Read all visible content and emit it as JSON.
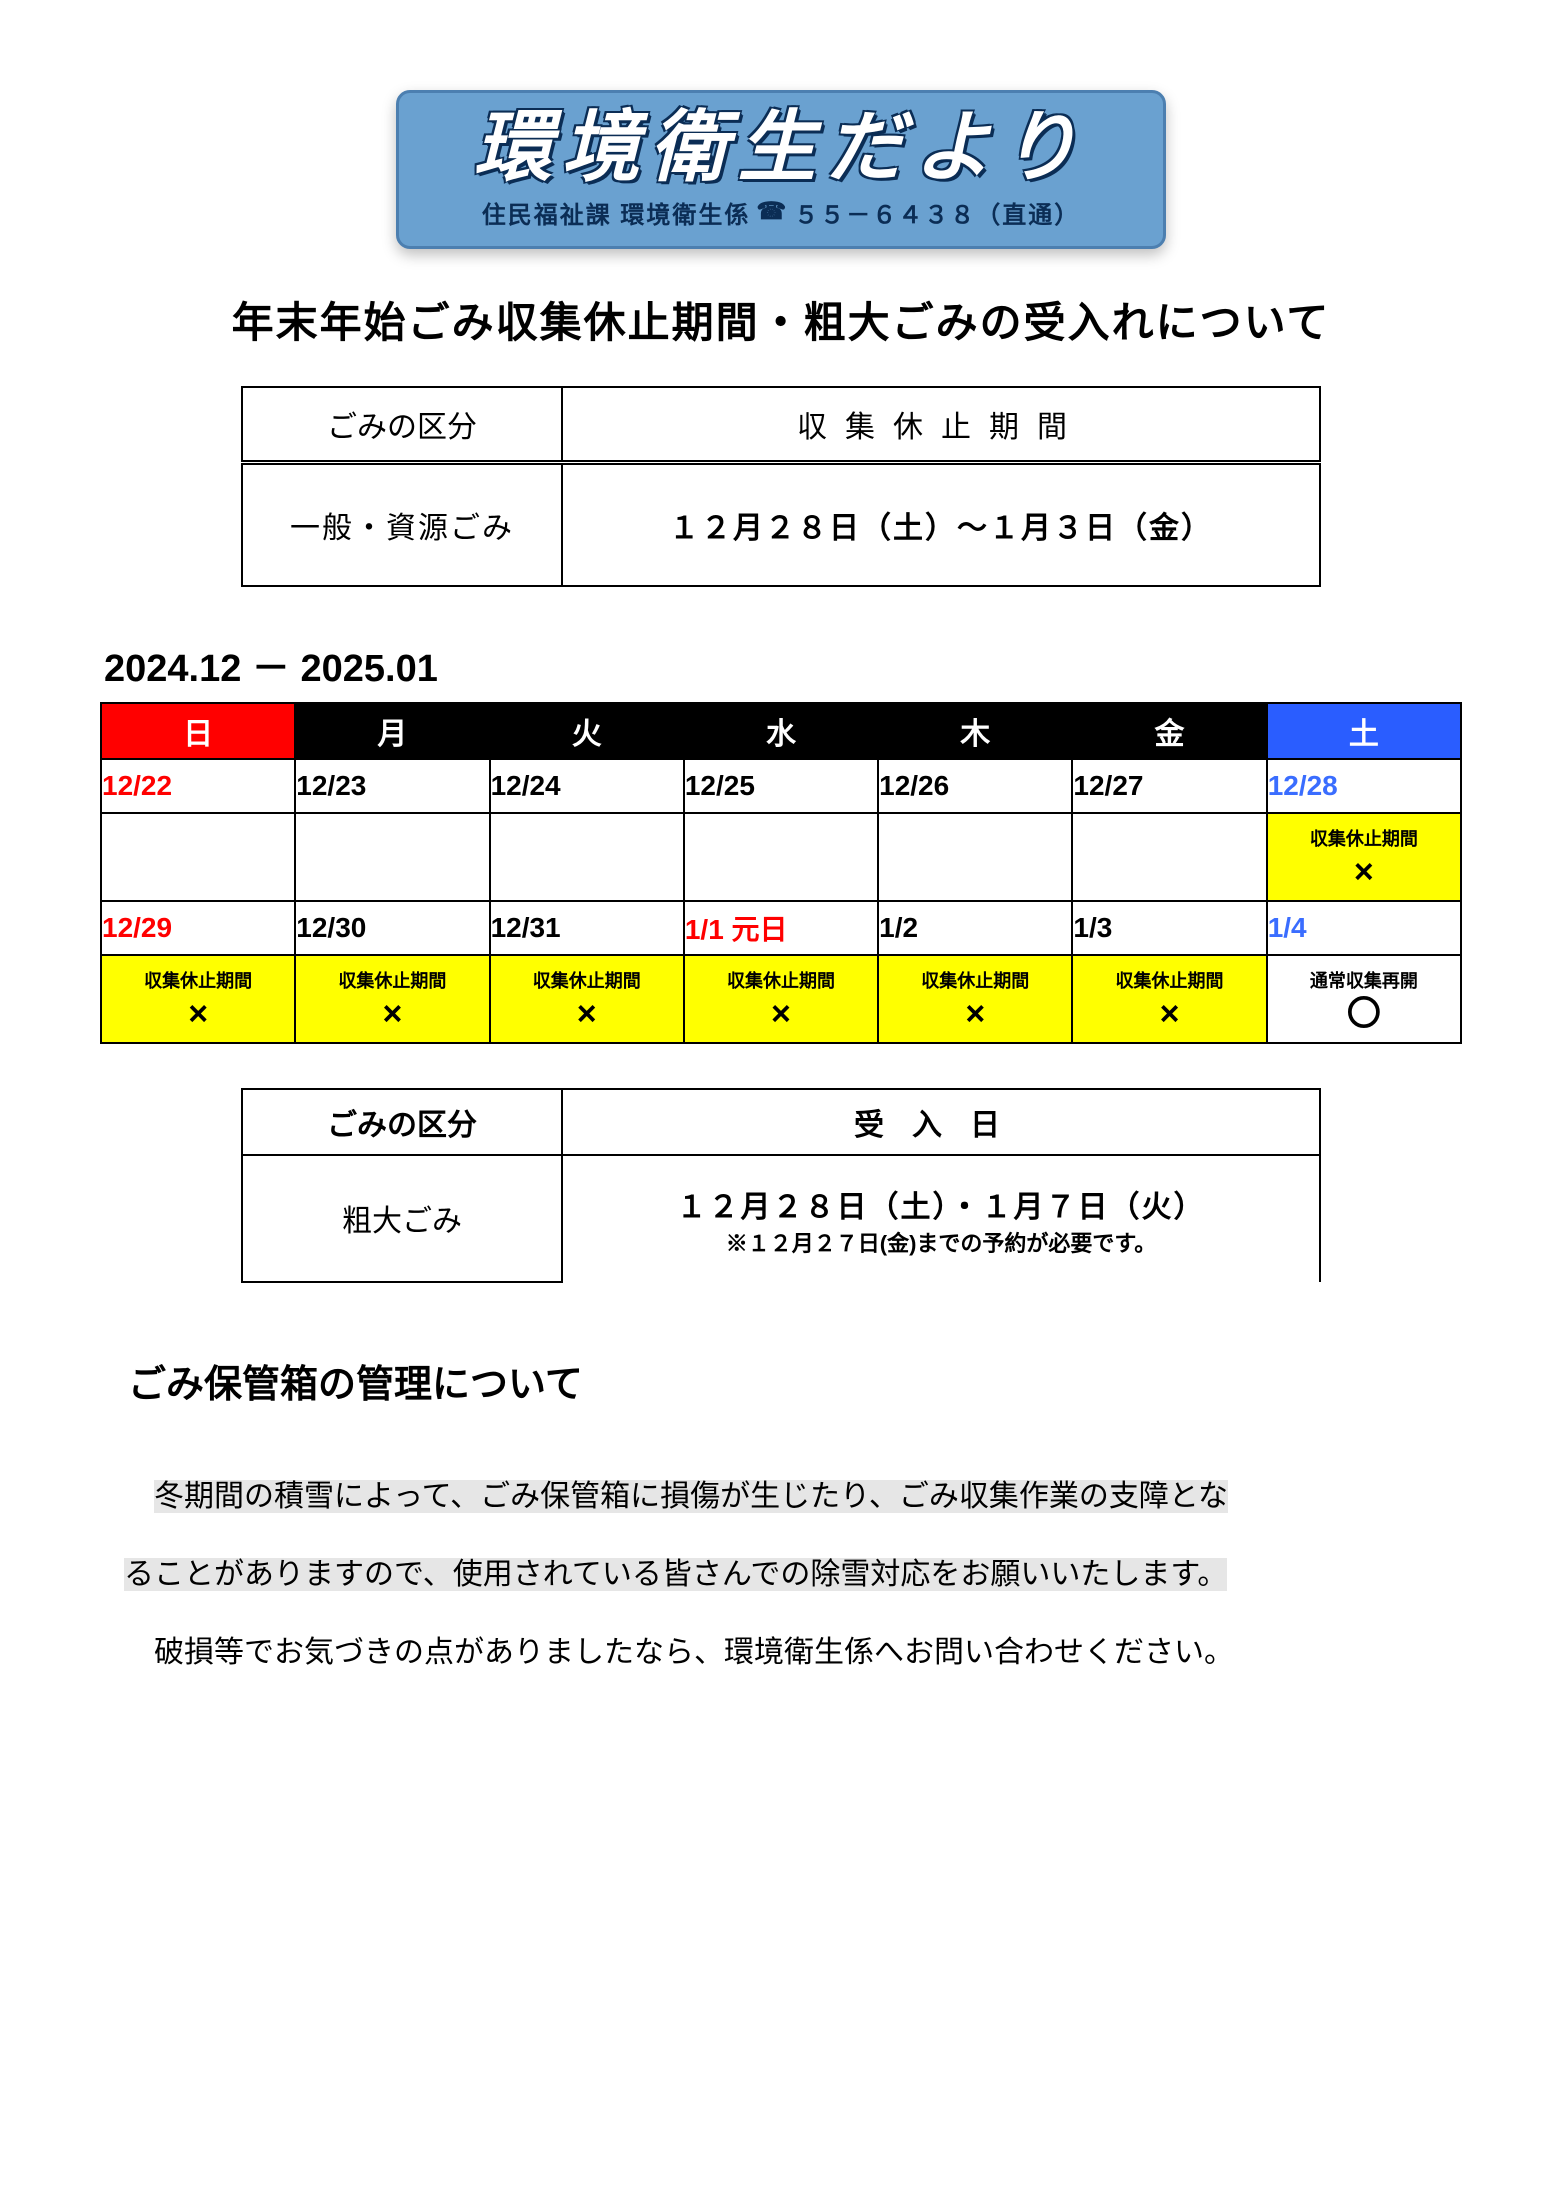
{
  "banner": {
    "title": "環境衛生だより",
    "subtitle_prefix": "住民福祉課 環境衛生係",
    "phone": "５５－６４３８（直通）",
    "bg_color": "#6aa1d0",
    "border_color": "#4c7fb0",
    "title_color": "#ffffff",
    "title_outline": "#0b2d55",
    "sub_color": "#0b2d55"
  },
  "heading1": "年末年始ごみ収集休止期間・粗大ごみの受入れについて",
  "table1": {
    "header_left": "ごみの区分",
    "header_right": "収集休止期間",
    "row_left": "一般・資源ごみ",
    "row_right": "１２月２８日（土）～１月３日（金）"
  },
  "calendar": {
    "caption": "2024.12 － 2025.01",
    "colors": {
      "sun_header_bg": "#ff0000",
      "sat_header_bg": "#2a5dff",
      "weekday_header_bg": "#000000",
      "sun_text": "#ff0000",
      "sat_text": "#3a6dff",
      "holiday_text": "#ff0000",
      "closed_bg": "#ffff00"
    },
    "headers": [
      "日",
      "月",
      "火",
      "水",
      "木",
      "金",
      "土"
    ],
    "rows": [
      {
        "dates": [
          {
            "text": "12/22",
            "color": "sun"
          },
          {
            "text": "12/23",
            "color": "default"
          },
          {
            "text": "12/24",
            "color": "default"
          },
          {
            "text": "12/25",
            "color": "default"
          },
          {
            "text": "12/26",
            "color": "default"
          },
          {
            "text": "12/27",
            "color": "default"
          },
          {
            "text": "12/28",
            "color": "sat"
          }
        ],
        "status": [
          null,
          null,
          null,
          null,
          null,
          null,
          {
            "label": "収集休止期間",
            "mark": "×",
            "bg": "closed"
          }
        ]
      },
      {
        "dates": [
          {
            "text": "12/29",
            "color": "sun"
          },
          {
            "text": "12/30",
            "color": "default"
          },
          {
            "text": "12/31",
            "color": "default"
          },
          {
            "text": "1/1 元日",
            "color": "holiday"
          },
          {
            "text": "1/2",
            "color": "default"
          },
          {
            "text": "1/3",
            "color": "default"
          },
          {
            "text": "1/4",
            "color": "sat"
          }
        ],
        "status": [
          {
            "label": "収集休止期間",
            "mark": "×",
            "bg": "closed"
          },
          {
            "label": "収集休止期間",
            "mark": "×",
            "bg": "closed"
          },
          {
            "label": "収集休止期間",
            "mark": "×",
            "bg": "closed"
          },
          {
            "label": "収集休止期間",
            "mark": "×",
            "bg": "closed"
          },
          {
            "label": "収集休止期間",
            "mark": "×",
            "bg": "closed"
          },
          {
            "label": "収集休止期間",
            "mark": "×",
            "bg": "closed"
          },
          {
            "label": "通常収集再開",
            "mark": "〇",
            "bg": "none"
          }
        ]
      }
    ]
  },
  "table2": {
    "header_left": "ごみの区分",
    "header_right": "受入日",
    "row_left": "粗大ごみ",
    "row_right_main": "１２月２８日（土）・１月７日（火）",
    "row_right_note": "※１２月２７日(金)までの予約が必要です。"
  },
  "heading2": "ごみ保管箱の管理について",
  "paragraph": {
    "highlighted_1": "冬期間の積雪によって、ごみ保管箱に損傷が生じたり、ごみ収集作業の支障とな",
    "highlighted_2": "ることがありますので、使用されている皆さんでの除雪対応をお願いいたします。",
    "plain": "破損等でお気づきの点がありましたなら、環境衛生係へお問い合わせください。",
    "highlight_bg": "#e6e6e6"
  }
}
